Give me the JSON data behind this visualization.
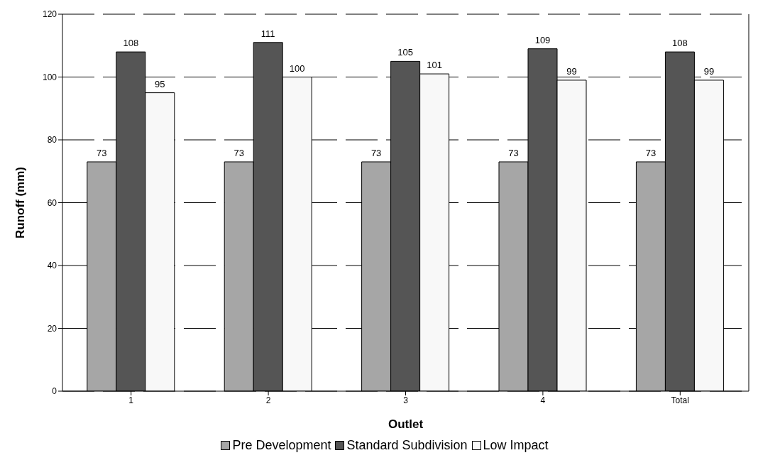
{
  "chart_data": {
    "type": "bar",
    "xlabel": "Outlet",
    "ylabel": "Runoff (mm)",
    "categories": [
      "1",
      "2",
      "3",
      "4",
      "Total"
    ],
    "series": [
      {
        "name": "Pre Development",
        "color": "#a6a6a6",
        "values": [
          73,
          73,
          73,
          73,
          73
        ]
      },
      {
        "name": "Standard Subdivision",
        "color": "#555555",
        "values": [
          108,
          111,
          105,
          109,
          108
        ]
      },
      {
        "name": "Low Impact",
        "color": "#f8f8f8",
        "values": [
          95,
          100,
          101,
          99,
          99
        ]
      }
    ],
    "ylim": [
      0,
      120
    ],
    "yticks": [
      0,
      20,
      40,
      60,
      80,
      100,
      120
    ],
    "grid": "y",
    "legend": "bottom",
    "data_labels": true
  }
}
